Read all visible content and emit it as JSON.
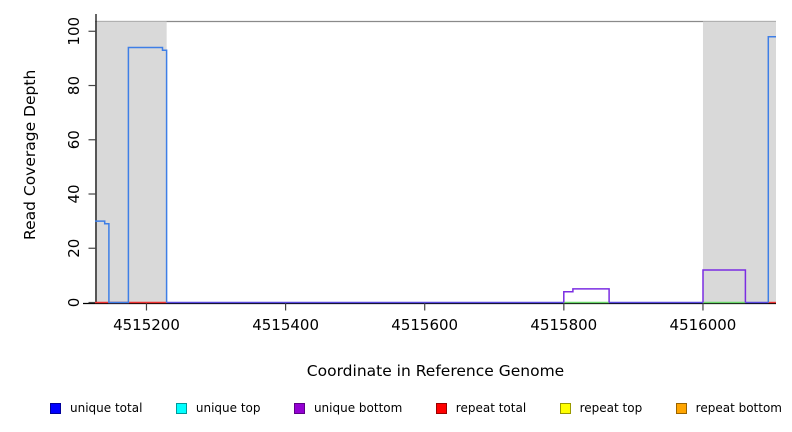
{
  "chart_data": {
    "type": "line",
    "title": "",
    "xlabel": "Coordinate in Reference Genome",
    "ylabel": "Read Coverage Depth",
    "xlim": [
      4515126,
      4516105
    ],
    "ylim": [
      0,
      106
    ],
    "x_ticks": [
      4515200,
      4515400,
      4515600,
      4515800,
      4516000
    ],
    "y_ticks": [
      0,
      20,
      40,
      60,
      80,
      100
    ],
    "grid": false,
    "legend_position": "bottom",
    "top_reference_line": {
      "value": 103.6,
      "color": "#8a8a8a"
    },
    "shaded_regions": [
      {
        "from": 4515126,
        "to": 4515229,
        "color": "#d9d9d9"
      },
      {
        "from": 4516000,
        "to": 4516105,
        "color": "#d9d9d9"
      }
    ],
    "series": [
      {
        "name": "unique total",
        "color": "#3e7ee6",
        "paths": [
          [
            [
              4515126,
              30
            ],
            [
              4515140,
              30
            ],
            [
              4515140,
              29
            ],
            [
              4515146,
              29
            ],
            [
              4515146,
              0
            ],
            [
              4515174,
              0
            ],
            [
              4515174,
              94
            ],
            [
              4515223,
              94
            ],
            [
              4515223,
              93
            ],
            [
              4515229,
              93
            ],
            [
              4515229,
              0
            ]
          ],
          [
            [
              4516094,
              0
            ],
            [
              4516094,
              98
            ],
            [
              4516105,
              98
            ]
          ]
        ]
      },
      {
        "name": "unique bottom",
        "color": "#7b2de2",
        "paths": [
          [
            [
              4515800,
              0
            ],
            [
              4515800,
              4
            ],
            [
              4515813,
              4
            ],
            [
              4515813,
              5
            ],
            [
              4515865,
              5
            ],
            [
              4515865,
              0
            ]
          ],
          [
            [
              4516000,
              0
            ],
            [
              4516000,
              12
            ],
            [
              4516061,
              12
            ],
            [
              4516061,
              0
            ]
          ]
        ]
      }
    ],
    "zero_level_segments": [
      {
        "from": 4515126,
        "to": 4515229,
        "color": "#ee3333"
      },
      {
        "from": 4515229,
        "to": 4515800,
        "color": "#5a4be0"
      },
      {
        "from": 4515800,
        "to": 4515865,
        "color": "#6cd96c"
      },
      {
        "from": 4515865,
        "to": 4516000,
        "color": "#5a4be0"
      },
      {
        "from": 4516000,
        "to": 4516061,
        "color": "#6cd96c"
      },
      {
        "from": 4516061,
        "to": 4516094,
        "color": "#5a4be0"
      },
      {
        "from": 4516094,
        "to": 4516105,
        "color": "#ee3333"
      }
    ]
  },
  "legend": {
    "items": [
      {
        "label": "unique total",
        "color": "#0000ff",
        "border": "#000099"
      },
      {
        "label": "unique top",
        "color": "#00ffff",
        "border": "#009999"
      },
      {
        "label": "unique bottom",
        "color": "#9400d3",
        "border": "#5e0087"
      },
      {
        "label": "repeat total",
        "color": "#ff0000",
        "border": "#990000"
      },
      {
        "label": "repeat top",
        "color": "#ffff00",
        "border": "#999900"
      },
      {
        "label": "repeat bottom",
        "color": "#ffa500",
        "border": "#996300"
      }
    ]
  }
}
